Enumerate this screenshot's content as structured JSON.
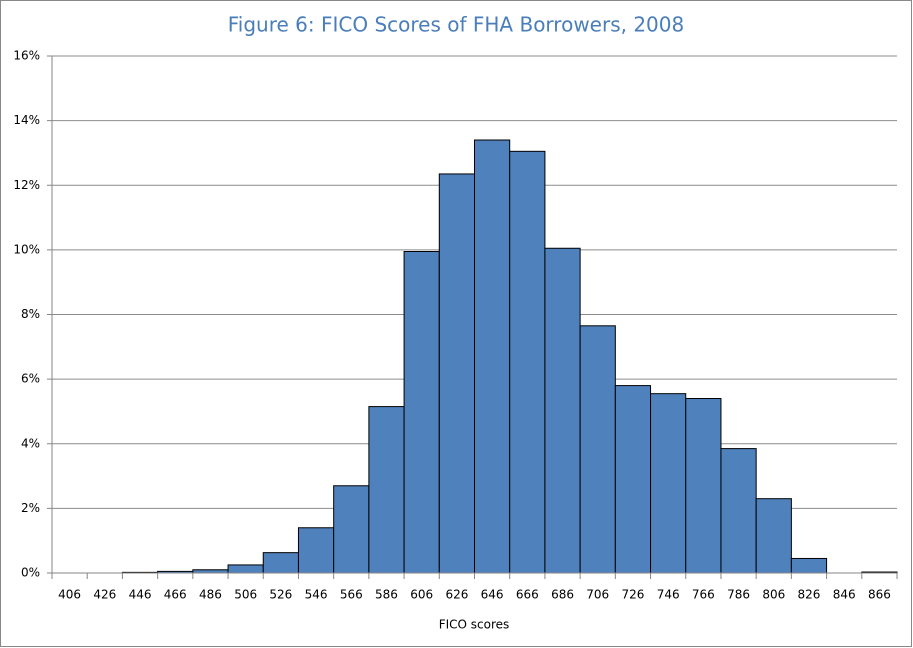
{
  "chart_data": {
    "type": "bar",
    "title": "Figure 6: FICO Scores of FHA Borrowers, 2008",
    "x_label": "FICO scores",
    "categories": [
      "406",
      "426",
      "446",
      "466",
      "486",
      "506",
      "526",
      "546",
      "566",
      "586",
      "606",
      "626",
      "646",
      "666",
      "686",
      "706",
      "726",
      "746",
      "766",
      "786",
      "806",
      "826",
      "846",
      "866"
    ],
    "values": [
      0,
      0,
      0.02,
      0.05,
      0.1,
      0.25,
      0.63,
      1.4,
      2.7,
      5.15,
      9.95,
      12.35,
      13.4,
      13.05,
      10.05,
      7.65,
      5.8,
      5.55,
      5.4,
      3.85,
      2.3,
      0.45,
      0,
      0.03
    ],
    "color": "#4f81bd",
    "ylim": [
      0,
      16
    ],
    "yticks": [
      {
        "value": 0,
        "label": "0%"
      },
      {
        "value": 2,
        "label": "2%"
      },
      {
        "value": 4,
        "label": "4%"
      },
      {
        "value": 6,
        "label": "6%"
      },
      {
        "value": 8,
        "label": "8%"
      },
      {
        "value": 10,
        "label": "10%"
      },
      {
        "value": 12,
        "label": "12%"
      },
      {
        "value": 14,
        "label": "14%"
      },
      {
        "value": 16,
        "label": "16%"
      }
    ],
    "grid": true
  }
}
